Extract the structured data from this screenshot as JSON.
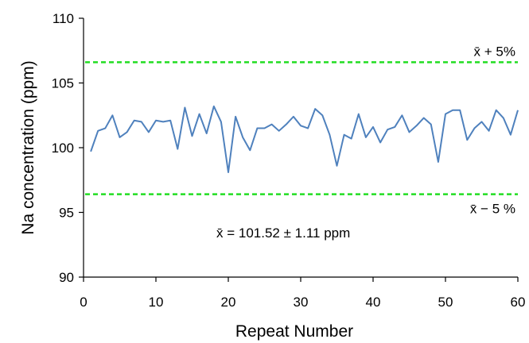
{
  "chart_data": {
    "type": "line",
    "xlabel": "Repeat Number",
    "ylabel": "Na concentration (ppm)",
    "xlim": [
      0,
      60
    ],
    "ylim": [
      90,
      110
    ],
    "x_ticks": [
      0,
      10,
      20,
      30,
      40,
      50,
      60
    ],
    "y_ticks": [
      90,
      95,
      100,
      105,
      110
    ],
    "grid": false,
    "series": [
      {
        "color": "#4f81bd",
        "x": [
          1,
          2,
          3,
          4,
          5,
          6,
          7,
          8,
          9,
          10,
          11,
          12,
          13,
          14,
          15,
          16,
          17,
          18,
          19,
          20,
          21,
          22,
          23,
          24,
          25,
          26,
          27,
          28,
          29,
          30,
          31,
          32,
          33,
          34,
          35,
          36,
          37,
          38,
          39,
          40,
          41,
          42,
          43,
          44,
          45,
          46,
          47,
          48,
          49,
          50,
          51,
          52,
          53,
          54,
          55,
          56,
          57,
          58,
          59,
          60
        ],
        "values": [
          99.7,
          101.3,
          101.5,
          102.5,
          100.8,
          101.2,
          102.1,
          102.0,
          101.2,
          102.1,
          102.0,
          102.1,
          99.9,
          103.1,
          100.9,
          102.6,
          101.1,
          103.2,
          102.0,
          98.1,
          102.4,
          100.8,
          99.8,
          101.5,
          101.5,
          101.8,
          101.3,
          101.8,
          102.4,
          101.7,
          101.5,
          103.0,
          102.5,
          101.0,
          98.6,
          101.0,
          100.7,
          102.6,
          100.8,
          101.6,
          100.4,
          101.4,
          101.6,
          102.5,
          101.2,
          101.7,
          102.3,
          101.8,
          98.9,
          102.6,
          102.9,
          102.9,
          100.6,
          101.5,
          102.0,
          101.3,
          102.9,
          102.3,
          101.0,
          102.9
        ]
      }
    ],
    "reference_lines": [
      {
        "y": 106.6,
        "label": "x̄ + 5%",
        "color": "#22dd22"
      },
      {
        "y": 96.4,
        "label": "x̄ − 5 %",
        "color": "#22dd22"
      }
    ],
    "annotation": "x̄ = 101.52 ± 1.11 ppm"
  }
}
